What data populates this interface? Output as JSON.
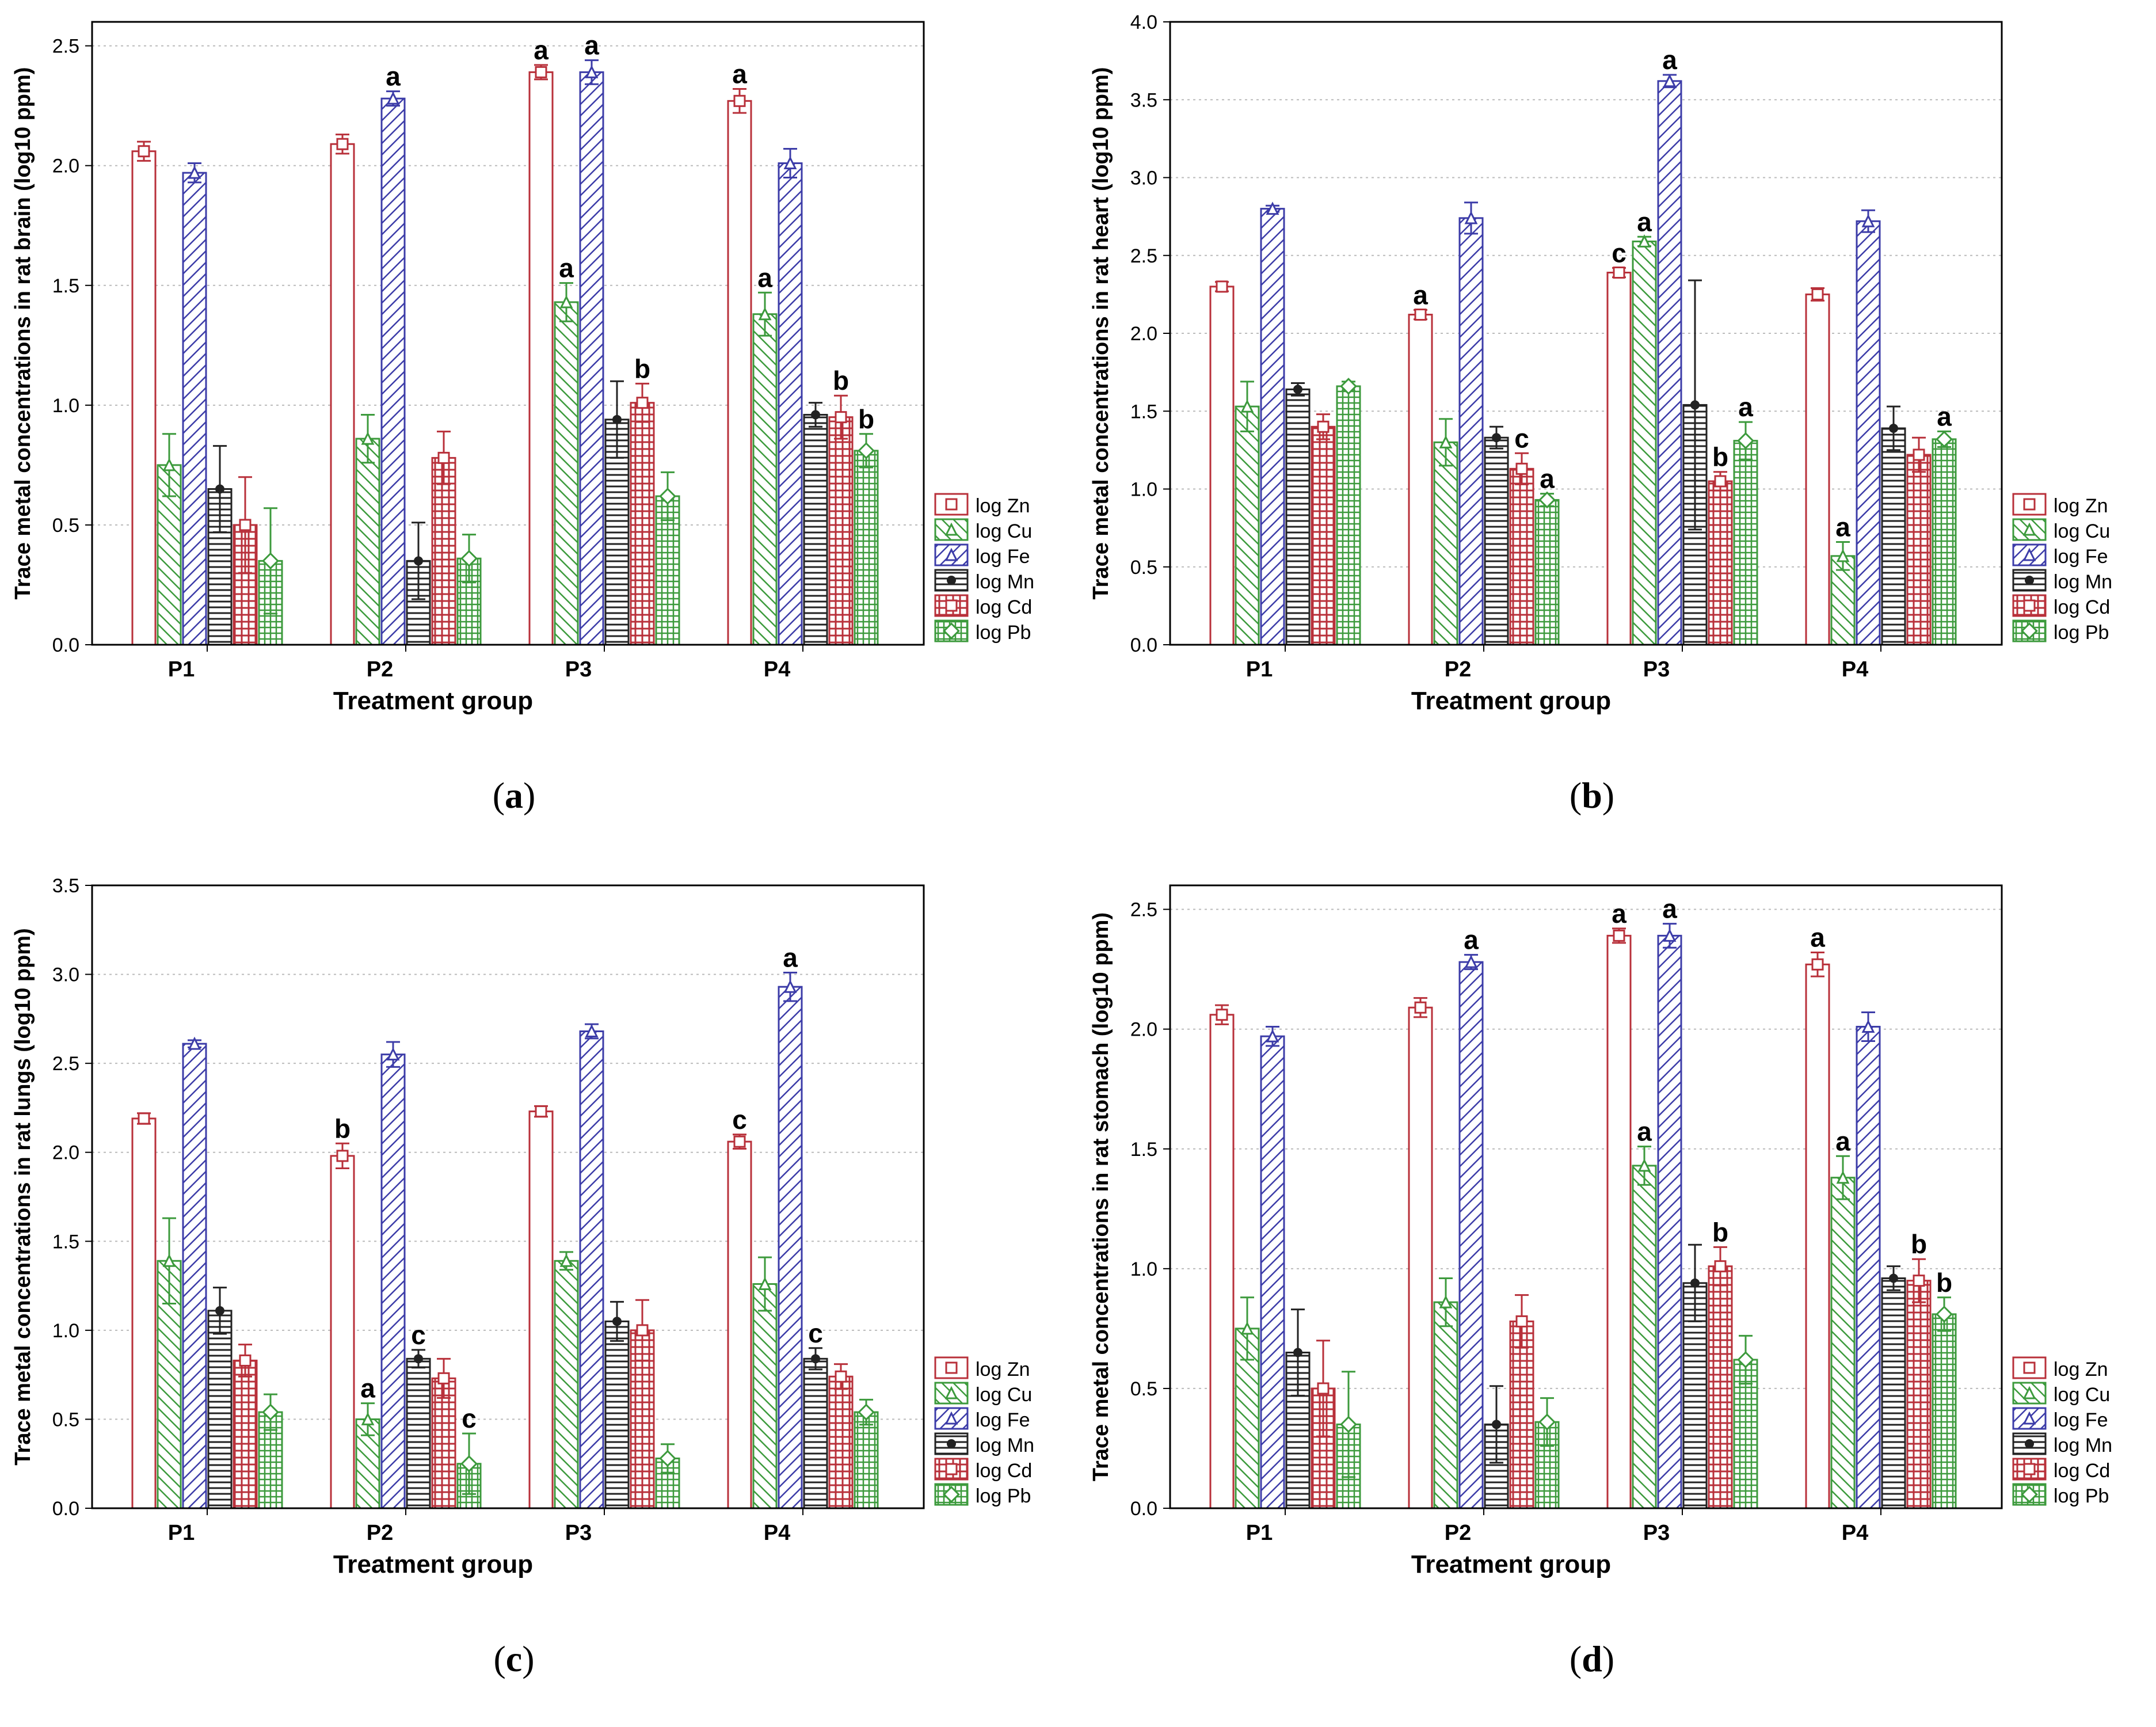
{
  "colors": {
    "log Zn": "#b8303a",
    "log Cu": "#3c9a3c",
    "log Fe": "#3c3ca8",
    "log Mn": "#222222",
    "log Cd": "#b8303a",
    "log Pb": "#3c9a3c"
  },
  "chart_data": [
    {
      "panel": "(a)",
      "caption_letter": "a",
      "type": "bar",
      "ylabel": "Trace metal concentrations in rat brain (log10 ppm)",
      "xlabel": "Treatment group",
      "ylim": [
        0,
        2.6
      ],
      "yticks": [
        "0.0",
        "0.5",
        "1.0",
        "1.5",
        "2.0",
        "2.5"
      ],
      "grid": true,
      "legend": "right",
      "categories": [
        "P1",
        "P2",
        "P3",
        "P4"
      ],
      "series": [
        {
          "name": "log Zn",
          "values": [
            2.06,
            2.09,
            2.39,
            2.27
          ],
          "errors": [
            0.04,
            0.04,
            0.03,
            0.05
          ],
          "labels": [
            "",
            "",
            "a",
            "a"
          ]
        },
        {
          "name": "log Cu",
          "values": [
            0.75,
            0.86,
            1.43,
            1.38
          ],
          "errors": [
            0.13,
            0.1,
            0.08,
            0.09
          ],
          "labels": [
            "",
            "",
            "a",
            "a"
          ]
        },
        {
          "name": "log Fe",
          "values": [
            1.97,
            2.28,
            2.39,
            2.01
          ],
          "errors": [
            0.04,
            0.03,
            0.05,
            0.06
          ],
          "labels": [
            "",
            "a",
            "a",
            ""
          ]
        },
        {
          "name": "log Mn",
          "values": [
            0.65,
            0.35,
            0.94,
            0.96
          ],
          "errors": [
            0.18,
            0.16,
            0.16,
            0.05
          ],
          "labels": [
            "",
            "",
            "",
            ""
          ]
        },
        {
          "name": "log Cd",
          "values": [
            0.5,
            0.78,
            1.01,
            0.95
          ],
          "errors": [
            0.2,
            0.11,
            0.08,
            0.09
          ],
          "labels": [
            "",
            "",
            "b",
            "b"
          ]
        },
        {
          "name": "log Pb",
          "values": [
            0.35,
            0.36,
            0.62,
            0.81
          ],
          "errors": [
            0.22,
            0.1,
            0.1,
            0.07
          ],
          "labels": [
            "",
            "",
            "",
            "b"
          ]
        }
      ]
    },
    {
      "panel": "(b)",
      "caption_letter": "b",
      "type": "bar",
      "ylabel": "Trace metal concentrations in rat heart (log10 ppm)",
      "xlabel": "Treatment group",
      "ylim": [
        0,
        4.0
      ],
      "yticks": [
        "0.0",
        "0.5",
        "1.0",
        "1.5",
        "2.0",
        "2.5",
        "3.0",
        "3.5",
        "4.0"
      ],
      "grid": true,
      "legend": "right",
      "categories": [
        "P1",
        "P2",
        "P3",
        "P4"
      ],
      "series": [
        {
          "name": "log Zn",
          "values": [
            2.3,
            2.12,
            2.39,
            2.25
          ],
          "errors": [
            0.03,
            0.03,
            0.03,
            0.04
          ],
          "labels": [
            "",
            "a",
            "c",
            ""
          ]
        },
        {
          "name": "log Cu",
          "values": [
            1.53,
            1.3,
            2.59,
            0.57
          ],
          "errors": [
            0.16,
            0.15,
            0.03,
            0.09
          ],
          "labels": [
            "",
            "",
            "a",
            "a"
          ]
        },
        {
          "name": "log Fe",
          "values": [
            2.8,
            2.74,
            3.62,
            2.72
          ],
          "errors": [
            0.02,
            0.1,
            0.04,
            0.07
          ],
          "labels": [
            "",
            "",
            "a",
            ""
          ]
        },
        {
          "name": "log Mn",
          "values": [
            1.64,
            1.33,
            1.54,
            1.39
          ],
          "errors": [
            0.04,
            0.07,
            0.8,
            0.14
          ],
          "labels": [
            "",
            "",
            "",
            ""
          ]
        },
        {
          "name": "log Cd",
          "values": [
            1.4,
            1.13,
            1.05,
            1.22
          ],
          "errors": [
            0.08,
            0.1,
            0.06,
            0.11
          ],
          "labels": [
            "",
            "c",
            "b",
            ""
          ]
        },
        {
          "name": "log Pb",
          "values": [
            1.66,
            0.93,
            1.31,
            1.32
          ],
          "errors": [
            0.03,
            0.04,
            0.12,
            0.05
          ],
          "labels": [
            "",
            "a",
            "a",
            "a"
          ]
        }
      ]
    },
    {
      "panel": "(c)",
      "caption_letter": "c",
      "type": "bar",
      "ylabel": "Trace metal concentrations in rat lungs (log10 ppm)",
      "xlabel": "Treatment group",
      "ylim": [
        0,
        3.5
      ],
      "yticks": [
        "0.0",
        "0.5",
        "1.0",
        "1.5",
        "2.0",
        "2.5",
        "3.0",
        "3.5"
      ],
      "grid": true,
      "legend": "right",
      "categories": [
        "P1",
        "P2",
        "P3",
        "P4"
      ],
      "series": [
        {
          "name": "log Zn",
          "values": [
            2.19,
            1.98,
            2.23,
            2.06
          ],
          "errors": [
            0.03,
            0.07,
            0.03,
            0.04
          ],
          "labels": [
            "",
            "b",
            "",
            "c"
          ]
        },
        {
          "name": "log Cu",
          "values": [
            1.39,
            0.5,
            1.39,
            1.26
          ],
          "errors": [
            0.24,
            0.09,
            0.05,
            0.15
          ],
          "labels": [
            "",
            "a",
            "",
            ""
          ]
        },
        {
          "name": "log Fe",
          "values": [
            2.61,
            2.55,
            2.68,
            2.93
          ],
          "errors": [
            0.02,
            0.07,
            0.04,
            0.08
          ],
          "labels": [
            "",
            "",
            "",
            "a"
          ]
        },
        {
          "name": "log Mn",
          "values": [
            1.11,
            0.84,
            1.05,
            0.84
          ],
          "errors": [
            0.13,
            0.05,
            0.11,
            0.06
          ],
          "labels": [
            "",
            "c",
            "",
            "c"
          ]
        },
        {
          "name": "log Cd",
          "values": [
            0.83,
            0.73,
            1.0,
            0.74
          ],
          "errors": [
            0.09,
            0.11,
            0.17,
            0.07
          ],
          "labels": [
            "",
            "",
            "",
            ""
          ]
        },
        {
          "name": "log Pb",
          "values": [
            0.54,
            0.25,
            0.28,
            0.54
          ],
          "errors": [
            0.1,
            0.17,
            0.08,
            0.07
          ],
          "labels": [
            "",
            "c",
            "",
            ""
          ]
        }
      ]
    },
    {
      "panel": "(d)",
      "caption_letter": "d",
      "type": "bar",
      "ylabel": "Trace metal concentrations in rat stomach (log10 ppm)",
      "xlabel": "Treatment group",
      "ylim": [
        0,
        2.6
      ],
      "yticks": [
        "0.0",
        "0.5",
        "1.0",
        "1.5",
        "2.0",
        "2.5"
      ],
      "grid": true,
      "legend": "right",
      "categories": [
        "P1",
        "P2",
        "P3",
        "P4"
      ],
      "series": [
        {
          "name": "log Zn",
          "values": [
            2.06,
            2.09,
            2.39,
            2.27
          ],
          "errors": [
            0.04,
            0.04,
            0.03,
            0.05
          ],
          "labels": [
            "",
            "",
            "a",
            "a"
          ]
        },
        {
          "name": "log Cu",
          "values": [
            0.75,
            0.86,
            1.43,
            1.38
          ],
          "errors": [
            0.13,
            0.1,
            0.08,
            0.09
          ],
          "labels": [
            "",
            "",
            "a",
            "a"
          ]
        },
        {
          "name": "log Fe",
          "values": [
            1.97,
            2.28,
            2.39,
            2.01
          ],
          "errors": [
            0.04,
            0.03,
            0.05,
            0.06
          ],
          "labels": [
            "",
            "a",
            "a",
            ""
          ]
        },
        {
          "name": "log Mn",
          "values": [
            0.65,
            0.35,
            0.94,
            0.96
          ],
          "errors": [
            0.18,
            0.16,
            0.16,
            0.05
          ],
          "labels": [
            "",
            "",
            "",
            ""
          ]
        },
        {
          "name": "log Cd",
          "values": [
            0.5,
            0.78,
            1.01,
            0.95
          ],
          "errors": [
            0.2,
            0.11,
            0.08,
            0.09
          ],
          "labels": [
            "",
            "",
            "b",
            "b"
          ]
        },
        {
          "name": "log Pb",
          "values": [
            0.35,
            0.36,
            0.62,
            0.81
          ],
          "errors": [
            0.22,
            0.1,
            0.1,
            0.07
          ],
          "labels": [
            "",
            "",
            "",
            "b"
          ]
        }
      ]
    }
  ]
}
